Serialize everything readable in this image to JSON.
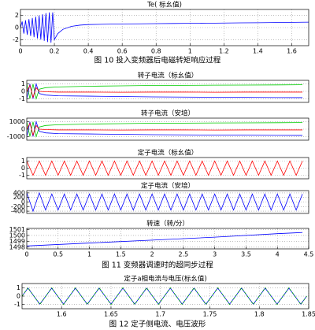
{
  "chart_data": [
    {
      "type": "line",
      "title": "Te( 标幺值)",
      "caption": "图 10 投入变频器后电磁转矩响应过程",
      "x": [
        0,
        0.01,
        0.02,
        0.03,
        0.04,
        0.05,
        0.06,
        0.07,
        0.08,
        0.09,
        0.1,
        0.11,
        0.12,
        0.13,
        0.14,
        0.15,
        0.16,
        0.17,
        0.18,
        0.19,
        0.2,
        0.22,
        0.25,
        0.3,
        0.35,
        0.4,
        0.5,
        0.6,
        0.7,
        0.8,
        0.9,
        1.0,
        1.1,
        1.2,
        1.3,
        1.4,
        1.5,
        1.6,
        1.7
      ],
      "series": [
        {
          "color": "#0000ff",
          "values": [
            0,
            1,
            -1,
            1.2,
            -1.2,
            1.4,
            -1.4,
            1.6,
            -1.6,
            1.8,
            -1.8,
            2,
            -2,
            2.2,
            -2.2,
            2.4,
            -2.4,
            2.5,
            -2.5,
            2.5,
            -2,
            -1,
            -0.3,
            0.2,
            0.4,
            0.5,
            0.55,
            0.6,
            0.62,
            0.65,
            0.68,
            0.7,
            0.72,
            0.75,
            0.78,
            0.8,
            0.83,
            0.86,
            0.9
          ]
        }
      ],
      "xlim": [
        0,
        1.7
      ],
      "ylim": [
        -3,
        3
      ],
      "xticks": [
        0,
        0.2,
        0.4,
        0.6,
        0.8,
        1,
        1.2,
        1.4,
        1.6
      ],
      "yticks": [
        -2,
        0,
        2
      ],
      "grid": true
    },
    {
      "type": "line",
      "title": "转子电流（标幺值）",
      "x": [
        0,
        0.05,
        0.1,
        0.15,
        0.2,
        0.3,
        0.5,
        1,
        1.5,
        2,
        2.5,
        3,
        3.5,
        4,
        4.4
      ],
      "series": [
        {
          "color": "#00cc00",
          "values": [
            1,
            -1,
            1,
            -1,
            0.3,
            0.5,
            0.6,
            0.7,
            0.75,
            0.8,
            0.82,
            0.84,
            0.86,
            0.88,
            0.9
          ]
        },
        {
          "color": "#0000ff",
          "values": [
            -1,
            1,
            -1,
            1,
            -0.3,
            -0.5,
            -0.6,
            -0.65,
            -0.7,
            -0.75,
            -0.78,
            -0.8,
            -0.82,
            -0.84,
            -0.85
          ]
        },
        {
          "color": "#ff0000",
          "values": [
            0,
            0.8,
            -0.8,
            0.5,
            0,
            -0.05,
            -0.1,
            -0.1,
            -0.12,
            -0.1,
            -0.1,
            -0.12,
            -0.1,
            -0.1,
            -0.1
          ]
        }
      ],
      "xlim": [
        0,
        4.5
      ],
      "ylim": [
        -1.5,
        1.5
      ],
      "yticks": [
        -1,
        0,
        1
      ],
      "grid": true
    },
    {
      "type": "line",
      "title": "转子电流（安培）",
      "x": [
        0,
        0.05,
        0.1,
        0.15,
        0.2,
        0.3,
        0.5,
        1,
        1.5,
        2,
        2.5,
        3,
        3.5,
        4,
        4.4
      ],
      "series": [
        {
          "color": "#00cc00",
          "values": [
            1000,
            -1000,
            1000,
            -1000,
            300,
            500,
            600,
            700,
            750,
            800,
            820,
            840,
            860,
            880,
            900
          ]
        },
        {
          "color": "#0000ff",
          "values": [
            -1000,
            1000,
            -1000,
            1000,
            -300,
            -500,
            -600,
            -650,
            -700,
            -750,
            -780,
            -800,
            -820,
            -840,
            -850
          ]
        },
        {
          "color": "#ff0000",
          "values": [
            0,
            800,
            -800,
            500,
            0,
            -50,
            -100,
            -100,
            -120,
            -100,
            -100,
            -120,
            -100,
            -100,
            -100
          ]
        }
      ],
      "xlim": [
        0,
        4.5
      ],
      "ylim": [
        -1500,
        1500
      ],
      "yticks": [
        -1000,
        0,
        1000
      ],
      "grid": true
    },
    {
      "type": "line",
      "title": "定子电流（标幺值）",
      "x": [
        0,
        0.1,
        0.2,
        0.3,
        0.4,
        0.5,
        0.6,
        0.7,
        0.8,
        0.9,
        1,
        1.1,
        1.2,
        1.3,
        1.4,
        1.5,
        1.6,
        1.7,
        1.8,
        1.9,
        2,
        2.1,
        2.2,
        2.3,
        2.4,
        2.5,
        2.6,
        2.7,
        2.8,
        2.9,
        3,
        3.1,
        3.2,
        3.3,
        3.4,
        3.5,
        3.6,
        3.7,
        3.8,
        3.9,
        4,
        4.1,
        4.2,
        4.3,
        4.4
      ],
      "series": [
        {
          "color": "#ff0000",
          "values": [
            1,
            -1,
            1,
            -1,
            1,
            -1,
            1,
            -1,
            1,
            -1,
            1,
            -1,
            1,
            -1,
            1,
            -1,
            1,
            -1,
            1,
            -1,
            1,
            -1,
            1,
            -1,
            1,
            -1,
            1,
            -1,
            1,
            -1,
            1,
            -1,
            1,
            -1,
            1,
            -1,
            1,
            -1,
            1,
            -1,
            1,
            -1,
            1,
            -1,
            1
          ]
        }
      ],
      "xlim": [
        0,
        4.5
      ],
      "ylim": [
        -1.5,
        1.5
      ],
      "yticks": [
        -1,
        0,
        1
      ],
      "grid": true
    },
    {
      "type": "line",
      "title": "定子电流（安培）",
      "x": [
        0,
        0.1,
        0.2,
        0.3,
        0.4,
        0.5,
        0.6,
        0.7,
        0.8,
        0.9,
        1,
        1.1,
        1.2,
        1.3,
        1.4,
        1.5,
        1.6,
        1.7,
        1.8,
        1.9,
        2,
        2.1,
        2.2,
        2.3,
        2.4,
        2.5,
        2.6,
        2.7,
        2.8,
        2.9,
        3,
        3.1,
        3.2,
        3.3,
        3.4,
        3.5,
        3.6,
        3.7,
        3.8,
        3.9,
        4,
        4.1,
        4.2,
        4.3,
        4.4
      ],
      "series": [
        {
          "color": "#0000ff",
          "values": [
            400,
            -400,
            400,
            -350,
            350,
            -350,
            350,
            -350,
            350,
            -350,
            350,
            -350,
            350,
            -350,
            350,
            -350,
            350,
            -350,
            350,
            -350,
            350,
            -350,
            350,
            -350,
            350,
            -350,
            350,
            -350,
            350,
            -350,
            350,
            -350,
            350,
            -350,
            350,
            -350,
            350,
            -350,
            350,
            -350,
            350,
            -350,
            350,
            -350,
            350
          ]
        }
      ],
      "xlim": [
        0,
        4.5
      ],
      "ylim": [
        -500,
        500
      ],
      "yticks": [
        -400,
        -200,
        0,
        200,
        400
      ],
      "grid": true
    },
    {
      "type": "line",
      "title": "转速（转/分）",
      "caption": "图 11 变频器调速时的超同步过程",
      "x": [
        0,
        1,
        2,
        3,
        4,
        4.4
      ],
      "series": [
        {
          "color": "#0000ff",
          "values": [
            1498.2,
            1498.7,
            1499.2,
            1499.7,
            1500.3,
            1500.5
          ]
        }
      ],
      "xlim": [
        0,
        4.5
      ],
      "ylim": [
        1497.7,
        1501.2
      ],
      "xticks": [
        0,
        0.5,
        1,
        1.5,
        2,
        2.5,
        3,
        3.5,
        4,
        4.5
      ],
      "yticks": [
        1498,
        1499,
        1500,
        1501
      ],
      "grid": true
    },
    {
      "type": "line",
      "title": "定子a相电流与电压(标幺值)",
      "caption": "图 12 定子侧电流、电压波形",
      "x": [
        1.56,
        1.566,
        1.572,
        1.578,
        1.584,
        1.59,
        1.596,
        1.602,
        1.608,
        1.614,
        1.62,
        1.626,
        1.632,
        1.638,
        1.644,
        1.65,
        1.656,
        1.662,
        1.668,
        1.674,
        1.68,
        1.686,
        1.692,
        1.698,
        1.704,
        1.71,
        1.716,
        1.722,
        1.728,
        1.734,
        1.74,
        1.746,
        1.752,
        1.758,
        1.764,
        1.77,
        1.776,
        1.782,
        1.788,
        1.794,
        1.8,
        1.806,
        1.812,
        1.818,
        1.824,
        1.83,
        1.836,
        1.842,
        1.848
      ],
      "series": [
        {
          "color": "#0000ff",
          "values": [
            0,
            0.95,
            0,
            -0.95,
            0,
            0.95,
            0,
            -0.95,
            0,
            0.95,
            0,
            -0.95,
            0,
            0.95,
            0,
            -0.95,
            0,
            0.95,
            0,
            -0.95,
            0,
            0.95,
            0,
            -0.95,
            0,
            0.95,
            0,
            -0.95,
            0,
            0.95,
            0,
            -0.95,
            0,
            0.95,
            0,
            -0.95,
            0,
            0.95,
            0,
            -0.95,
            0,
            0.95,
            0,
            -0.95,
            0,
            0.95,
            0,
            -0.95,
            0
          ]
        },
        {
          "color": "#00aa00",
          "dashed": true,
          "values": [
            0,
            1,
            0,
            -1,
            0,
            1,
            0,
            -1,
            0,
            1,
            0,
            -1,
            0,
            1,
            0,
            -1,
            0,
            1,
            0,
            -1,
            0,
            1,
            0,
            -1,
            0,
            1,
            0,
            -1,
            0,
            1,
            0,
            -1,
            0,
            1,
            0,
            -1,
            0,
            1,
            0,
            -1,
            0,
            1,
            0,
            -1,
            0,
            1,
            0,
            -1,
            0
          ]
        }
      ],
      "xlim": [
        1.56,
        1.85
      ],
      "ylim": [
        -1.5,
        1.5
      ],
      "xticks": [
        1.6,
        1.65,
        1.7,
        1.75,
        1.8,
        1.85
      ],
      "yticks": [
        -1,
        0,
        1
      ],
      "grid": true
    }
  ]
}
